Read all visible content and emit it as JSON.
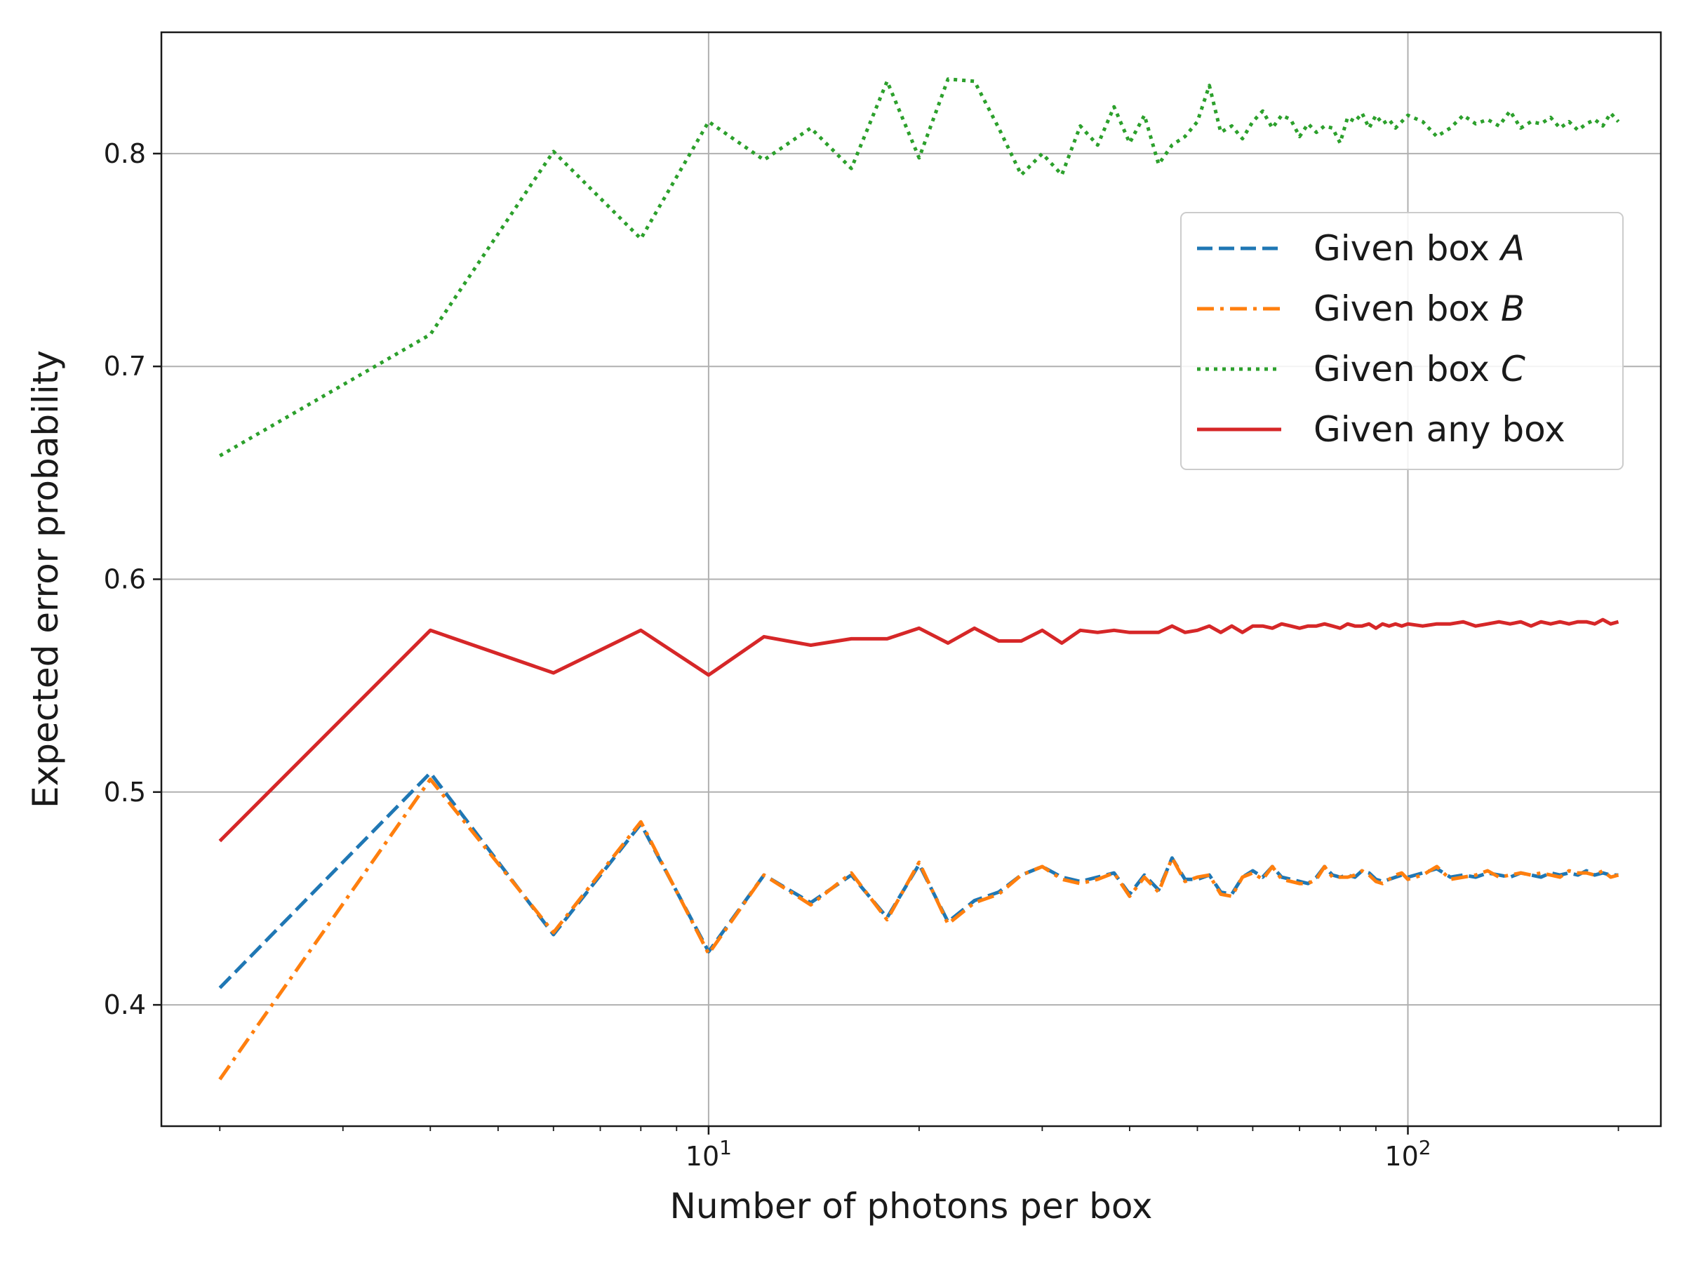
{
  "chart_data": {
    "type": "line",
    "title": "",
    "xlabel": "Number of photons per box",
    "ylabel": "Expected error probability",
    "xscale": "log",
    "xlim": [
      1.65,
      230
    ],
    "ylim": [
      0.343,
      0.857
    ],
    "grid": true,
    "legend_position": "upper-right",
    "x_ticks": [
      {
        "value": 10,
        "base": "10",
        "exponent": "1"
      },
      {
        "value": 100,
        "base": "10",
        "exponent": "2"
      }
    ],
    "y_ticks": [
      {
        "value": 0.4,
        "label": "0.4"
      },
      {
        "value": 0.5,
        "label": "0.5"
      },
      {
        "value": 0.6,
        "label": "0.6"
      },
      {
        "value": 0.7,
        "label": "0.7"
      },
      {
        "value": 0.8,
        "label": "0.8"
      }
    ],
    "series": [
      {
        "name_prefix": "Given box ",
        "name_var": "A",
        "color": "#1f77b4",
        "style": "dashed",
        "x": [
          2,
          4,
          6,
          8,
          10,
          12,
          14,
          16,
          18,
          20,
          22,
          24,
          26,
          28,
          30,
          32,
          34,
          36,
          38,
          40,
          42,
          44,
          46,
          48,
          50,
          52,
          54,
          56,
          58,
          60,
          62,
          64,
          66,
          68,
          70,
          72,
          74,
          76,
          78,
          80,
          82,
          84,
          86,
          88,
          90,
          92,
          94,
          96,
          98,
          100,
          105,
          110,
          115,
          120,
          125,
          130,
          135,
          140,
          145,
          150,
          155,
          160,
          165,
          170,
          175,
          180,
          185,
          190,
          195,
          200
        ],
        "y": [
          0.408,
          0.509,
          0.433,
          0.485,
          0.425,
          0.461,
          0.448,
          0.461,
          0.441,
          0.466,
          0.439,
          0.449,
          0.453,
          0.461,
          0.465,
          0.46,
          0.458,
          0.46,
          0.462,
          0.452,
          0.461,
          0.454,
          0.469,
          0.459,
          0.459,
          0.461,
          0.453,
          0.452,
          0.46,
          0.463,
          0.46,
          0.465,
          0.46,
          0.459,
          0.458,
          0.457,
          0.46,
          0.465,
          0.461,
          0.46,
          0.461,
          0.46,
          0.463,
          0.462,
          0.459,
          0.458,
          0.459,
          0.46,
          0.461,
          0.46,
          0.462,
          0.464,
          0.46,
          0.461,
          0.46,
          0.462,
          0.461,
          0.46,
          0.462,
          0.461,
          0.46,
          0.462,
          0.461,
          0.462,
          0.461,
          0.463,
          0.461,
          0.462,
          0.461,
          0.461
        ]
      },
      {
        "name_prefix": "Given box ",
        "name_var": "B",
        "color": "#ff7f0e",
        "style": "dashdot",
        "x": [
          2,
          4,
          6,
          8,
          10,
          12,
          14,
          16,
          18,
          20,
          22,
          24,
          26,
          28,
          30,
          32,
          34,
          36,
          38,
          40,
          42,
          44,
          46,
          48,
          50,
          52,
          54,
          56,
          58,
          60,
          62,
          64,
          66,
          68,
          70,
          72,
          74,
          76,
          78,
          80,
          82,
          84,
          86,
          88,
          90,
          92,
          94,
          96,
          98,
          100,
          105,
          110,
          115,
          120,
          125,
          130,
          135,
          140,
          145,
          150,
          155,
          160,
          165,
          170,
          175,
          180,
          185,
          190,
          195,
          200
        ],
        "y": [
          0.365,
          0.506,
          0.434,
          0.486,
          0.424,
          0.461,
          0.447,
          0.462,
          0.44,
          0.467,
          0.438,
          0.448,
          0.452,
          0.461,
          0.465,
          0.459,
          0.457,
          0.459,
          0.462,
          0.451,
          0.46,
          0.453,
          0.469,
          0.458,
          0.46,
          0.461,
          0.452,
          0.451,
          0.46,
          0.462,
          0.459,
          0.465,
          0.459,
          0.458,
          0.457,
          0.457,
          0.459,
          0.465,
          0.46,
          0.46,
          0.46,
          0.461,
          0.463,
          0.461,
          0.458,
          0.457,
          0.459,
          0.461,
          0.462,
          0.459,
          0.461,
          0.465,
          0.459,
          0.46,
          0.461,
          0.463,
          0.46,
          0.461,
          0.462,
          0.461,
          0.462,
          0.461,
          0.46,
          0.463,
          0.462,
          0.462,
          0.461,
          0.463,
          0.46,
          0.461
        ]
      },
      {
        "name_prefix": "Given box ",
        "name_var": "C",
        "color": "#2ca02c",
        "style": "dotted",
        "x": [
          2,
          4,
          6,
          8,
          10,
          12,
          14,
          16,
          18,
          20,
          22,
          24,
          26,
          28,
          30,
          32,
          34,
          36,
          38,
          40,
          42,
          44,
          46,
          48,
          50,
          52,
          54,
          56,
          58,
          60,
          62,
          64,
          66,
          68,
          70,
          72,
          74,
          76,
          78,
          80,
          82,
          84,
          86,
          88,
          90,
          92,
          94,
          96,
          98,
          100,
          105,
          110,
          115,
          120,
          125,
          130,
          135,
          140,
          145,
          150,
          155,
          160,
          165,
          170,
          175,
          180,
          185,
          190,
          195,
          200
        ],
        "y": [
          0.658,
          0.715,
          0.801,
          0.76,
          0.815,
          0.797,
          0.812,
          0.793,
          0.834,
          0.798,
          0.835,
          0.834,
          0.812,
          0.79,
          0.8,
          0.79,
          0.813,
          0.804,
          0.822,
          0.805,
          0.818,
          0.795,
          0.804,
          0.808,
          0.815,
          0.832,
          0.81,
          0.813,
          0.807,
          0.815,
          0.82,
          0.812,
          0.818,
          0.816,
          0.808,
          0.814,
          0.81,
          0.813,
          0.812,
          0.805,
          0.817,
          0.815,
          0.819,
          0.812,
          0.818,
          0.814,
          0.816,
          0.812,
          0.815,
          0.818,
          0.815,
          0.808,
          0.812,
          0.818,
          0.814,
          0.816,
          0.813,
          0.82,
          0.812,
          0.815,
          0.814,
          0.817,
          0.812,
          0.815,
          0.811,
          0.814,
          0.816,
          0.813,
          0.819,
          0.815
        ]
      },
      {
        "name_prefix": "Given any box",
        "name_var": "",
        "color": "#d62728",
        "style": "solid",
        "x": [
          2,
          4,
          6,
          8,
          10,
          12,
          14,
          16,
          18,
          20,
          22,
          24,
          26,
          28,
          30,
          32,
          34,
          36,
          38,
          40,
          42,
          44,
          46,
          48,
          50,
          52,
          54,
          56,
          58,
          60,
          62,
          64,
          66,
          68,
          70,
          72,
          74,
          76,
          78,
          80,
          82,
          84,
          86,
          88,
          90,
          92,
          94,
          96,
          98,
          100,
          105,
          110,
          115,
          120,
          125,
          130,
          135,
          140,
          145,
          150,
          155,
          160,
          165,
          170,
          175,
          180,
          185,
          190,
          195,
          200
        ],
        "y": [
          0.477,
          0.576,
          0.556,
          0.576,
          0.555,
          0.573,
          0.569,
          0.572,
          0.572,
          0.577,
          0.57,
          0.577,
          0.571,
          0.571,
          0.576,
          0.57,
          0.576,
          0.575,
          0.576,
          0.575,
          0.575,
          0.575,
          0.578,
          0.575,
          0.576,
          0.578,
          0.575,
          0.578,
          0.575,
          0.578,
          0.578,
          0.577,
          0.579,
          0.578,
          0.577,
          0.578,
          0.578,
          0.579,
          0.578,
          0.577,
          0.579,
          0.578,
          0.578,
          0.579,
          0.577,
          0.579,
          0.578,
          0.579,
          0.578,
          0.579,
          0.578,
          0.579,
          0.579,
          0.58,
          0.578,
          0.579,
          0.58,
          0.579,
          0.58,
          0.578,
          0.58,
          0.579,
          0.58,
          0.579,
          0.58,
          0.58,
          0.579,
          0.581,
          0.579,
          0.58
        ]
      }
    ]
  }
}
